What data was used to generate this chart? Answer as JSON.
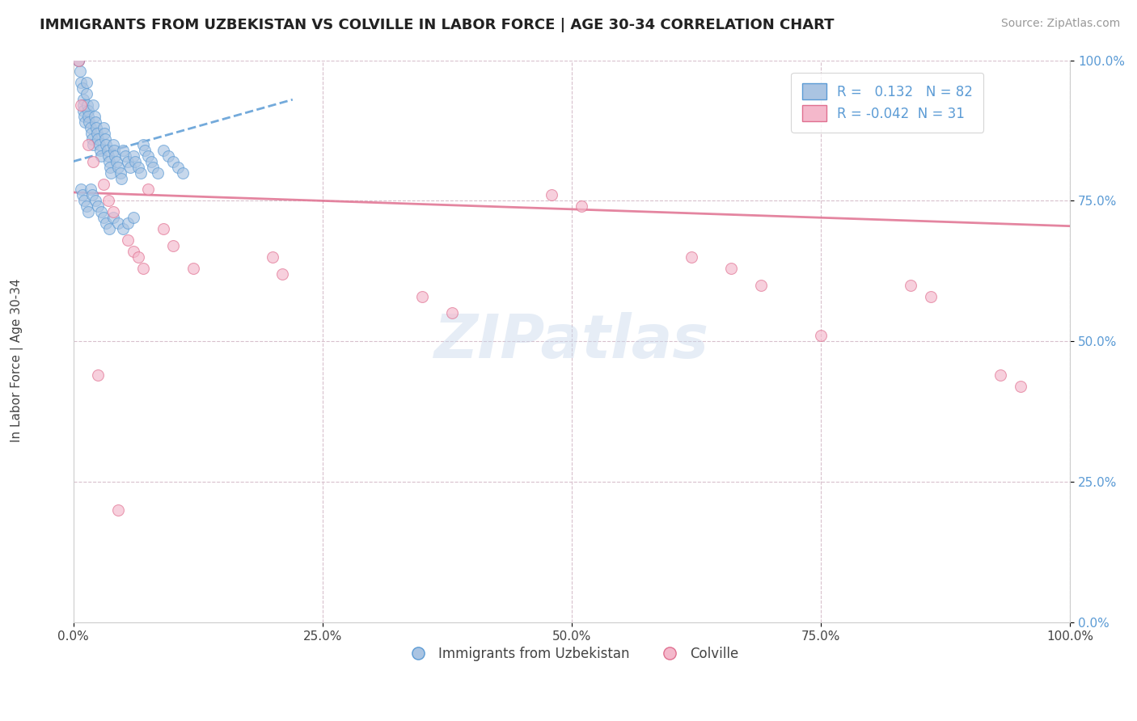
{
  "title": "IMMIGRANTS FROM UZBEKISTAN VS COLVILLE IN LABOR FORCE | AGE 30-34 CORRELATION CHART",
  "source_text": "Source: ZipAtlas.com",
  "ylabel": "In Labor Force | Age 30-34",
  "xlim": [
    0.0,
    1.0
  ],
  "ylim": [
    0.0,
    1.0
  ],
  "xticks": [
    0.0,
    0.25,
    0.5,
    0.75,
    1.0
  ],
  "yticks": [
    0.0,
    0.25,
    0.5,
    0.75,
    1.0
  ],
  "xtick_labels": [
    "0.0%",
    "25.0%",
    "50.0%",
    "75.0%",
    "100.0%"
  ],
  "ytick_labels": [
    "0.0%",
    "25.0%",
    "50.0%",
    "75.0%",
    "100.0%"
  ],
  "series1_color": "#aac4e2",
  "series1_edge_color": "#5b9bd5",
  "series2_color": "#f4b8cb",
  "series2_edge_color": "#e07090",
  "series1_label": "Immigrants from Uzbekistan",
  "series2_label": "Colville",
  "R1": 0.132,
  "N1": 82,
  "R2": -0.042,
  "N2": 31,
  "trend1_color": "#5b9bd5",
  "trend2_color": "#e07090",
  "watermark": "ZIPatlas",
  "marker_size": 100,
  "marker_alpha": 0.65,
  "bg_color": "#ffffff",
  "series1_x": [
    0.005,
    0.005,
    0.007,
    0.008,
    0.009,
    0.01,
    0.01,
    0.01,
    0.011,
    0.012,
    0.013,
    0.013,
    0.014,
    0.015,
    0.015,
    0.016,
    0.017,
    0.018,
    0.019,
    0.02,
    0.02,
    0.021,
    0.022,
    0.023,
    0.024,
    0.025,
    0.026,
    0.027,
    0.028,
    0.03,
    0.031,
    0.032,
    0.033,
    0.034,
    0.035,
    0.036,
    0.037,
    0.038,
    0.04,
    0.041,
    0.042,
    0.043,
    0.045,
    0.047,
    0.048,
    0.05,
    0.052,
    0.055,
    0.057,
    0.06,
    0.062,
    0.065,
    0.068,
    0.07,
    0.072,
    0.075,
    0.078,
    0.08,
    0.085,
    0.09,
    0.095,
    0.1,
    0.105,
    0.11,
    0.008,
    0.009,
    0.011,
    0.013,
    0.015,
    0.017,
    0.019,
    0.022,
    0.025,
    0.028,
    0.03,
    0.033,
    0.036,
    0.04,
    0.045,
    0.05,
    0.055,
    0.06
  ],
  "series1_y": [
    1.0,
    1.0,
    0.98,
    0.96,
    0.95,
    0.93,
    0.92,
    0.91,
    0.9,
    0.89,
    0.96,
    0.94,
    0.92,
    0.91,
    0.9,
    0.89,
    0.88,
    0.87,
    0.86,
    0.85,
    0.92,
    0.9,
    0.89,
    0.88,
    0.87,
    0.86,
    0.85,
    0.84,
    0.83,
    0.88,
    0.87,
    0.86,
    0.85,
    0.84,
    0.83,
    0.82,
    0.81,
    0.8,
    0.85,
    0.84,
    0.83,
    0.82,
    0.81,
    0.8,
    0.79,
    0.84,
    0.83,
    0.82,
    0.81,
    0.83,
    0.82,
    0.81,
    0.8,
    0.85,
    0.84,
    0.83,
    0.82,
    0.81,
    0.8,
    0.84,
    0.83,
    0.82,
    0.81,
    0.8,
    0.77,
    0.76,
    0.75,
    0.74,
    0.73,
    0.77,
    0.76,
    0.75,
    0.74,
    0.73,
    0.72,
    0.71,
    0.7,
    0.72,
    0.71,
    0.7,
    0.71,
    0.72
  ],
  "series2_x": [
    0.005,
    0.008,
    0.015,
    0.02,
    0.03,
    0.035,
    0.04,
    0.055,
    0.06,
    0.065,
    0.07,
    0.075,
    0.09,
    0.1,
    0.12,
    0.2,
    0.21,
    0.35,
    0.38,
    0.48,
    0.51,
    0.62,
    0.66,
    0.69,
    0.75,
    0.84,
    0.86,
    0.93,
    0.95,
    0.025,
    0.045
  ],
  "series2_y": [
    1.0,
    0.92,
    0.85,
    0.82,
    0.78,
    0.75,
    0.73,
    0.68,
    0.66,
    0.65,
    0.63,
    0.77,
    0.7,
    0.67,
    0.63,
    0.65,
    0.62,
    0.58,
    0.55,
    0.76,
    0.74,
    0.65,
    0.63,
    0.6,
    0.51,
    0.6,
    0.58,
    0.44,
    0.42,
    0.44,
    0.2
  ],
  "trend1_start_x": 0.0,
  "trend1_end_x": 0.22,
  "trend1_start_y": 0.82,
  "trend1_end_y": 0.93,
  "trend2_start_x": 0.0,
  "trend2_end_x": 1.0,
  "trend2_start_y": 0.765,
  "trend2_end_y": 0.705
}
